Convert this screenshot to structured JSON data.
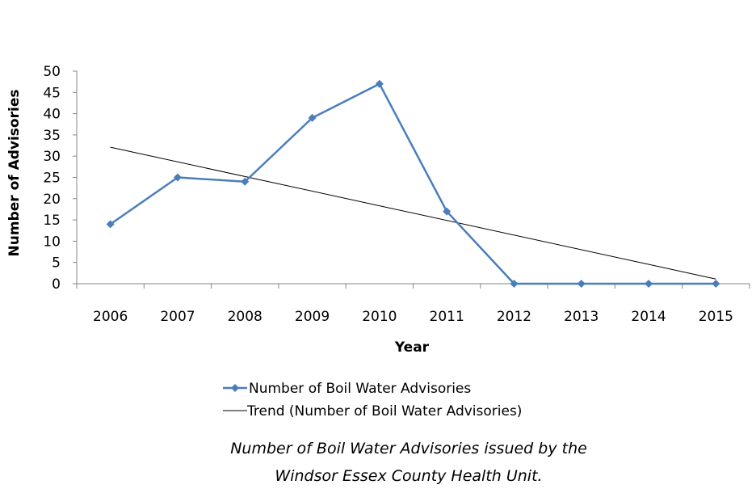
{
  "chart_data": {
    "type": "line",
    "title": "",
    "xlabel": "Year",
    "ylabel": "Number of Advisories",
    "categories": [
      "2006",
      "2007",
      "2008",
      "2009",
      "2010",
      "2011",
      "2012",
      "2013",
      "2014",
      "2015"
    ],
    "ylim": [
      0,
      50
    ],
    "yticks": [
      0,
      5,
      10,
      15,
      20,
      25,
      30,
      35,
      40,
      45,
      50
    ],
    "grid": false,
    "legend_position": "bottom",
    "series": [
      {
        "name": "Number of Boil Water Advisories",
        "values": [
          14,
          25,
          24,
          39,
          47,
          17,
          0,
          0,
          0,
          0
        ],
        "color": "#4a7ebb",
        "marker": "diamond"
      },
      {
        "name": "Trend (Number of Boil Water Advisories)",
        "type": "linear-trend",
        "start": 32.1,
        "end": 1.1,
        "color": "#000000"
      }
    ],
    "caption": [
      "Number of Boil Water Advisories issued by the",
      "Windsor Essex County Health Unit."
    ]
  }
}
